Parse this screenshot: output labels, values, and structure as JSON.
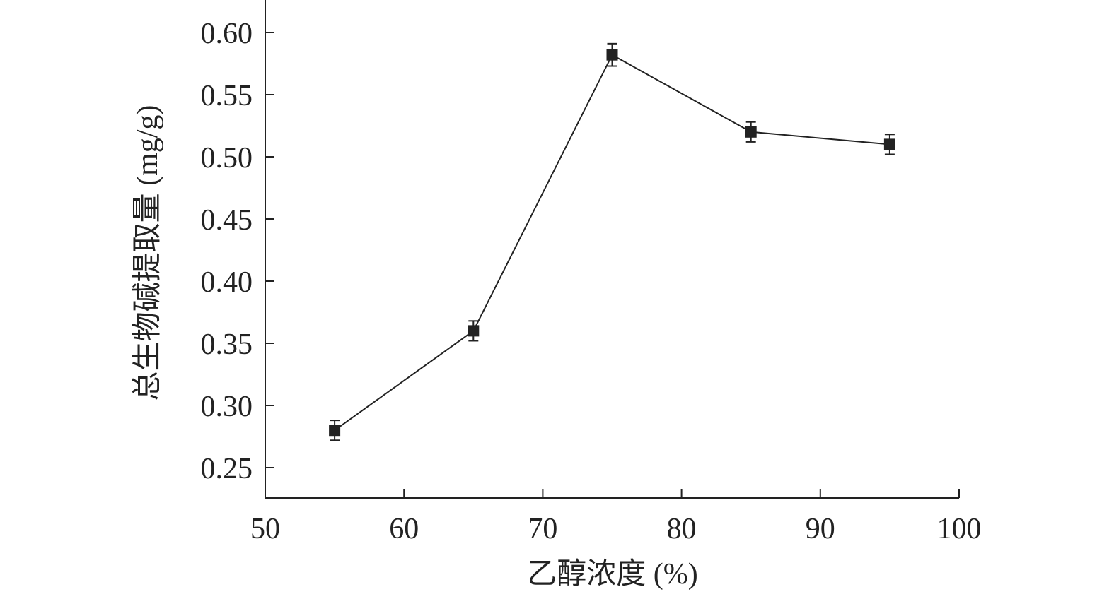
{
  "chart_data": {
    "type": "line",
    "xlabel": "乙醇浓度 (%)",
    "ylabel": "总生物碱提取量 (mg/g)",
    "xlim": [
      50,
      100
    ],
    "ylim": [
      0.225,
      0.625
    ],
    "x_ticks": [
      50,
      60,
      70,
      80,
      90,
      100
    ],
    "x_tick_labels": [
      "50",
      "60",
      "70",
      "80",
      "90",
      "100"
    ],
    "y_ticks": [
      0.25,
      0.3,
      0.35,
      0.4,
      0.45,
      0.5,
      0.55,
      0.6
    ],
    "y_tick_labels": [
      "0.25",
      "0.30",
      "0.35",
      "0.40",
      "0.45",
      "0.50",
      "0.55",
      "0.60"
    ],
    "grid": false,
    "marker": "square",
    "colors": {
      "line": "#222222",
      "marker": "#222222"
    },
    "series": [
      {
        "x": [
          55,
          65,
          75,
          85,
          95
        ],
        "y": [
          0.28,
          0.36,
          0.582,
          0.52,
          0.51
        ],
        "error": [
          0.008,
          0.008,
          0.009,
          0.008,
          0.008
        ]
      }
    ]
  }
}
